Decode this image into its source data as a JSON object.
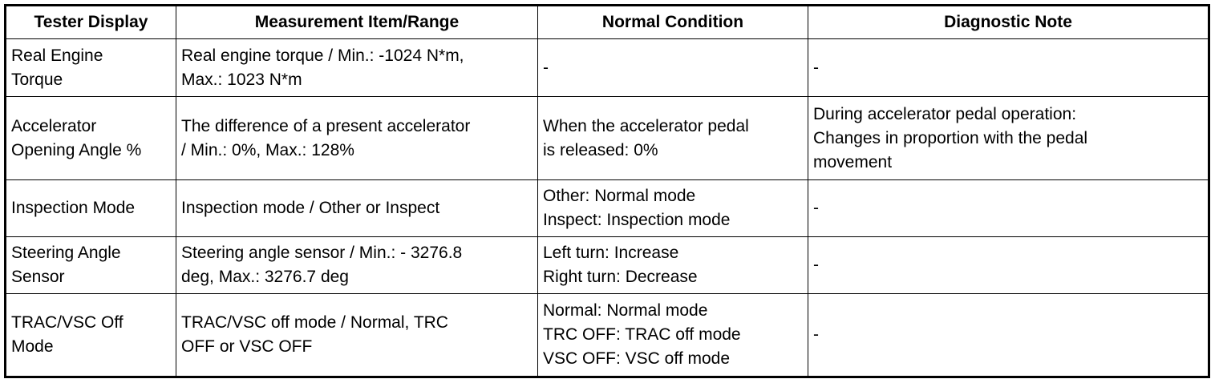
{
  "table": {
    "header": [
      "Tester Display",
      "Measurement Item/Range",
      "Normal Condition",
      "Diagnostic Note"
    ],
    "rows": [
      [
        [
          "Real Engine",
          "Torque"
        ],
        [
          "Real engine torque / Min.: -1024 N*m,",
          "Max.: 1023 N*m"
        ],
        [
          "-"
        ],
        [
          "-"
        ]
      ],
      [
        [
          "Accelerator",
          "Opening Angle %"
        ],
        [
          "The difference of a present accelerator",
          "/ Min.: 0%, Max.: 128%"
        ],
        [
          "When the accelerator pedal",
          "is released: 0%"
        ],
        [
          "During accelerator pedal operation:",
          "Changes in proportion with the pedal",
          "movement"
        ]
      ],
      [
        [
          "Inspection Mode"
        ],
        [
          "Inspection mode / Other or Inspect"
        ],
        [
          "Other: Normal mode",
          "Inspect: Inspection mode"
        ],
        [
          "-"
        ]
      ],
      [
        [
          "Steering Angle",
          "Sensor"
        ],
        [
          "Steering angle sensor / Min.: - 3276.8",
          "deg, Max.: 3276.7 deg"
        ],
        [
          "Left turn: Increase",
          "Right turn: Decrease"
        ],
        [
          "-"
        ]
      ],
      [
        [
          "TRAC/VSC Off",
          "Mode"
        ],
        [
          "TRAC/VSC off mode / Normal, TRC",
          "OFF or VSC OFF"
        ],
        [
          "Normal: Normal mode",
          "TRC OFF: TRAC off mode",
          "VSC OFF: VSC off mode"
        ],
        [
          "-"
        ]
      ]
    ]
  }
}
